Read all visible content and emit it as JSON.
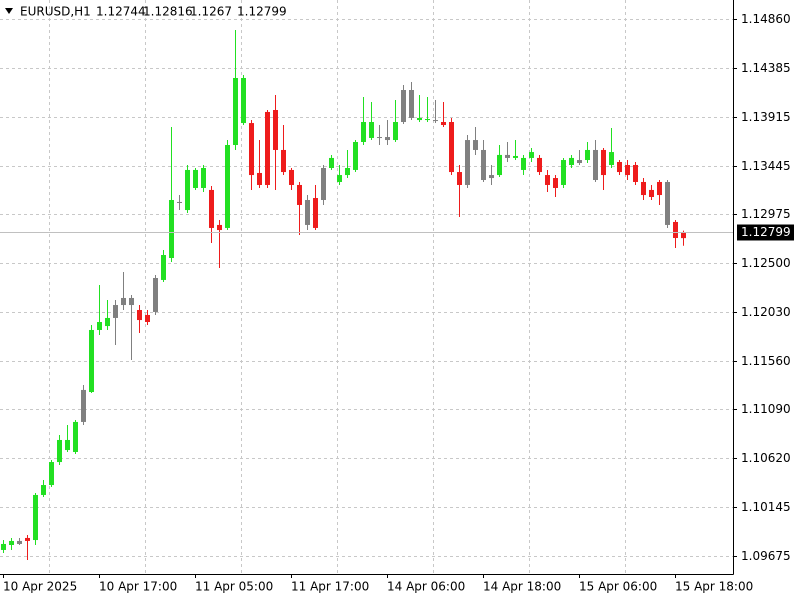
{
  "chart_data": {
    "type": "candlestick",
    "title": "EURUSD,H1",
    "categories": [
      "10 Apr 2025",
      null,
      null,
      null,
      null,
      null,
      null,
      null,
      null,
      null,
      null,
      null,
      "10 Apr 17:00",
      null,
      null,
      null,
      null,
      null,
      null,
      null,
      null,
      null,
      null,
      null,
      "11 Apr 05:00",
      null,
      null,
      null,
      null,
      null,
      null,
      null,
      null,
      null,
      null,
      null,
      "11 Apr 17:00",
      null,
      null,
      null,
      null,
      null,
      null,
      null,
      null,
      null,
      null,
      null,
      "14 Apr 06:00",
      null,
      null,
      null,
      null,
      null,
      null,
      null,
      null,
      null,
      null,
      null,
      "14 Apr 18:00",
      null,
      null,
      null,
      null,
      null,
      null,
      null,
      null,
      null,
      null,
      null,
      "15 Apr 06:00",
      null,
      null,
      null,
      null,
      null,
      null,
      null,
      null,
      null,
      null,
      null,
      "15 Apr 18:00",
      null
    ],
    "open": [
      1.09733,
      1.09781,
      1.09791,
      1.09849,
      1.09829,
      1.10264,
      1.1036,
      1.10582,
      1.10698,
      1.10679,
      1.10969,
      1.11258,
      1.11857,
      1.11895,
      1.11973,
      1.12098,
      1.12098,
      1.1205,
      1.12002,
      1.12031,
      1.1234,
      1.12552,
      1.13093,
      1.13015,
      1.13228,
      1.13228,
      1.13209,
      1.12871,
      1.12842,
      1.13643,
      1.13855,
      1.13855,
      1.13373,
      1.13962,
      1.13981,
      1.13595,
      1.13402,
      1.13257,
      1.12871,
      1.13131,
      1.13112,
      1.13421,
      1.13286,
      1.13353,
      1.13402,
      1.13672,
      1.13711,
      1.13711,
      1.13691,
      1.13691,
      1.13865,
      1.14174,
      1.13884,
      1.13884,
      1.13884,
      1.13865,
      1.13865,
      1.13382,
      1.13257,
      1.13691,
      1.13595,
      1.13324,
      1.13353,
      1.13547,
      1.13518,
      1.13402,
      1.13518,
      1.13518,
      1.13353,
      1.13324,
      1.13257,
      1.1345,
      1.13498,
      1.13498,
      1.13595,
      1.13595,
      1.1345,
      1.13479,
      1.1345,
      1.1345,
      1.13286,
      1.13209,
      1.13286,
      1.13286,
      1.129,
      1.12744
    ],
    "high": [
      1.09829,
      1.09849,
      1.09849,
      1.09878,
      1.10283,
      1.10409,
      1.10602,
      1.10843,
      1.1094,
      1.10988,
      1.11326,
      1.11905,
      1.12291,
      1.12146,
      1.12146,
      1.12417,
      1.12195,
      1.12098,
      1.1205,
      1.12388,
      1.12629,
      1.13817,
      1.1316,
      1.1345,
      1.13421,
      1.1345,
      1.13247,
      1.12919,
      1.13691,
      1.14753,
      1.14319,
      1.13884,
      1.13691,
      1.13981,
      1.14126,
      1.13836,
      1.13421,
      1.13286,
      1.1316,
      1.13257,
      1.1345,
      1.13547,
      1.1345,
      1.13595,
      1.13691,
      1.14107,
      1.14058,
      1.13836,
      1.13884,
      1.14078,
      1.14222,
      1.14251,
      1.14126,
      1.14107,
      1.14078,
      1.14058,
      1.13904,
      1.1345,
      1.1374,
      1.13817,
      1.13691,
      1.1345,
      1.13643,
      1.13672,
      1.13691,
      1.13547,
      1.13614,
      1.13547,
      1.13402,
      1.13353,
      1.13518,
      1.13547,
      1.13595,
      1.13672,
      1.13691,
      1.13614,
      1.13807,
      1.13498,
      1.13498,
      1.13479,
      1.13324,
      1.13257,
      1.13305,
      1.13305,
      1.12919,
      1.12816
    ],
    "low": [
      1.09704,
      1.09733,
      1.09781,
      1.09636,
      1.09781,
      1.10244,
      1.10341,
      1.10553,
      1.10679,
      1.1066,
      1.1094,
      1.11249,
      1.11809,
      1.11857,
      1.11712,
      1.1205,
      1.11567,
      1.11828,
      1.11905,
      1.12002,
      1.1232,
      1.12513,
      1.13015,
      1.12986,
      1.13209,
      1.13189,
      1.12697,
      1.12455,
      1.12822,
      1.13595,
      1.13836,
      1.13209,
      1.13228,
      1.13228,
      1.13209,
      1.13353,
      1.13209,
      1.12774,
      1.12822,
      1.12822,
      1.13064,
      1.13402,
      1.13257,
      1.13324,
      1.13382,
      1.13643,
      1.13691,
      1.13643,
      1.13643,
      1.13672,
      1.13846,
      1.13884,
      1.13865,
      1.13865,
      1.13855,
      1.13817,
      1.13353,
      1.12948,
      1.13228,
      1.13547,
      1.13286,
      1.13257,
      1.13334,
      1.13479,
      1.13498,
      1.13353,
      1.13479,
      1.13353,
      1.13189,
      1.13141,
      1.13228,
      1.13421,
      1.1345,
      1.13469,
      1.13286,
      1.13209,
      1.13421,
      1.13353,
      1.13305,
      1.13257,
      1.13112,
      1.13112,
      1.13064,
      1.12842,
      1.12649,
      1.1267
    ],
    "close": [
      1.09791,
      1.0982,
      1.0982,
      1.0982,
      1.10264,
      1.1036,
      1.10582,
      1.10795,
      1.10795,
      1.10969,
      1.11278,
      1.11857,
      1.11934,
      1.11973,
      1.12098,
      1.12166,
      1.12166,
      1.11953,
      1.11934,
      1.12359,
      1.12581,
      1.13112,
      1.13083,
      1.13402,
      1.13402,
      1.13421,
      1.12842,
      1.12822,
      1.13643,
      1.1429,
      1.1429,
      1.13353,
      1.13257,
      1.13257,
      1.13595,
      1.13382,
      1.13257,
      1.13064,
      1.13112,
      1.12842,
      1.13421,
      1.13518,
      1.13353,
      1.13421,
      1.13672,
      1.13865,
      1.13865,
      1.1372,
      1.1372,
      1.13865,
      1.14174,
      1.13904,
      1.13904,
      1.13894,
      1.13875,
      1.13836,
      1.13382,
      1.13257,
      1.13691,
      1.13595,
      1.13305,
      1.13353,
      1.13547,
      1.13518,
      1.13537,
      1.13518,
      1.13575,
      1.13382,
      1.13257,
      1.13228,
      1.13498,
      1.13518,
      1.13469,
      1.13595,
      1.13305,
      1.13353,
      1.13575,
      1.13382,
      1.13353,
      1.13286,
      1.1316,
      1.13141,
      1.1316,
      1.12871,
      1.12745,
      1.12799
    ],
    "colors": [
      "#22e022",
      "#22e022",
      "#808080",
      "#ee1c1c",
      "#22e022",
      "#22e022",
      "#22e022",
      "#22e022",
      "#22e022",
      "#22e022",
      "#808080",
      "#22e022",
      "#22e022",
      "#22e022",
      "#808080",
      "#808080",
      "#808080",
      "#ee1c1c",
      "#ee1c1c",
      "#808080",
      "#22e022",
      "#22e022",
      "#808080",
      "#22e022",
      "#22e022",
      "#22e022",
      "#ee1c1c",
      "#ee1c1c",
      "#22e022",
      "#22e022",
      "#22e022",
      "#ee1c1c",
      "#ee1c1c",
      "#ee1c1c",
      "#ee1c1c",
      "#ee1c1c",
      "#ee1c1c",
      "#ee1c1c",
      "#808080",
      "#ee1c1c",
      "#808080",
      "#22e022",
      "#22e022",
      "#22e022",
      "#22e022",
      "#22e022",
      "#22e022",
      "#808080",
      "#808080",
      "#22e022",
      "#808080",
      "#808080",
      "#22e022",
      "#22e022",
      "#808080",
      "#ee1c1c",
      "#ee1c1c",
      "#ee1c1c",
      "#808080",
      "#808080",
      "#808080",
      "#808080",
      "#22e022",
      "#808080",
      "#22e022",
      "#22e022",
      "#22e022",
      "#ee1c1c",
      "#ee1c1c",
      "#ee1c1c",
      "#22e022",
      "#22e022",
      "#808080",
      "#22e022",
      "#808080",
      "#ee1c1c",
      "#22e022",
      "#ee1c1c",
      "#ee1c1c",
      "#ee1c1c",
      "#ee1c1c",
      "#ee1c1c",
      "#ee1c1c",
      "#808080",
      "#ee1c1c",
      "#ee1c1c"
    ],
    "ylim": [
      1.09501,
      1.15043
    ],
    "yticks": [
      {
        "value": 1.1486,
        "label": "1.14860"
      },
      1.14385,
      1.13915,
      1.13445,
      1.12975,
      {
        "value": 1.125,
        "label": "1.12500"
      },
      {
        "value": 1.1203,
        "label": "1.12030"
      },
      {
        "value": 1.1156,
        "label": "1.11560"
      },
      {
        "value": 1.1109,
        "label": "1.11090"
      },
      {
        "value": 1.1062,
        "label": "1.10620"
      },
      1.10145,
      1.09675
    ],
    "grid": true
  }
}
